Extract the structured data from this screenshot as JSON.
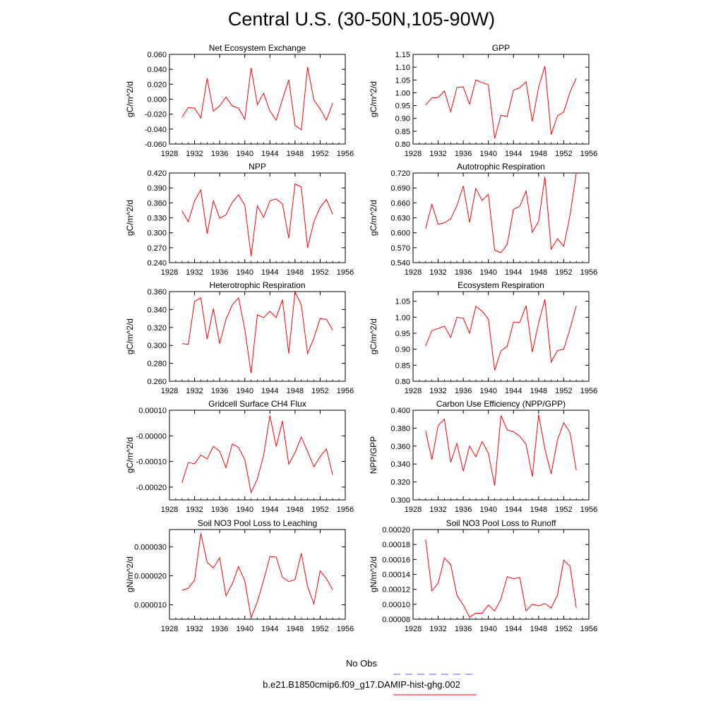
{
  "title": "Central U.S. (30-50N,105-90W)",
  "colors": {
    "model_line": "#ff0000",
    "obs_line": "#5555ff",
    "axis": "#000000"
  },
  "legend": [
    {
      "label": "No Obs",
      "color": "#5555ff",
      "style": "dashed"
    },
    {
      "label": "b.e21.B1850cmip6.f09_g17.DAMIP-hist-ghg.002",
      "color": "#ff0000",
      "style": "solid"
    }
  ],
  "chart_data": [
    {
      "type": "line",
      "title": "Net Ecosystem Exchange",
      "ylabel": "gC/m^2/d",
      "xlim": [
        1928,
        1956
      ],
      "xticks": [
        "1928",
        "1932",
        "1936",
        "1940",
        "1944",
        "1948",
        "1952",
        "1956"
      ],
      "ylim": [
        -0.06,
        0.06
      ],
      "yticks": [
        "-0.060",
        "-0.040",
        "-0.020",
        "0.000",
        "0.020",
        "0.040",
        "0.060"
      ],
      "x": [
        1930,
        1931,
        1932,
        1933,
        1934,
        1935,
        1936,
        1937,
        1938,
        1939,
        1940,
        1941,
        1942,
        1943,
        1944,
        1945,
        1946,
        1947,
        1948,
        1949,
        1950,
        1951,
        1952,
        1953,
        1954
      ],
      "series": [
        {
          "values": [
            -0.024,
            -0.011,
            -0.012,
            -0.025,
            0.028,
            -0.016,
            -0.009,
            0.003,
            -0.009,
            -0.012,
            -0.027,
            0.042,
            -0.007,
            0.008,
            -0.016,
            -0.028,
            0.0,
            0.026,
            -0.035,
            -0.041,
            0.043,
            -0.001,
            -0.013,
            -0.028,
            -0.005
          ]
        }
      ]
    },
    {
      "type": "line",
      "title": "GPP",
      "ylabel": "gC/m^2/d",
      "xlim": [
        1928,
        1956
      ],
      "xticks": [
        "1928",
        "1932",
        "1936",
        "1940",
        "1944",
        "1948",
        "1952",
        "1956"
      ],
      "ylim": [
        0.8,
        1.15
      ],
      "yticks": [
        "0.80",
        "0.85",
        "0.90",
        "0.95",
        "1.00",
        "1.05",
        "1.10",
        "1.15"
      ],
      "x": [
        1930,
        1931,
        1932,
        1933,
        1934,
        1935,
        1936,
        1937,
        1938,
        1939,
        1940,
        1941,
        1942,
        1943,
        1944,
        1945,
        1946,
        1947,
        1948,
        1949,
        1950,
        1951,
        1952,
        1953,
        1954
      ],
      "series": [
        {
          "values": [
            0.952,
            0.98,
            0.982,
            1.007,
            0.926,
            1.021,
            1.023,
            0.956,
            1.05,
            1.04,
            1.031,
            0.822,
            0.912,
            0.908,
            1.01,
            1.02,
            1.043,
            0.888,
            1.022,
            1.104,
            0.837,
            0.91,
            0.925,
            1.003,
            1.057
          ]
        }
      ]
    },
    {
      "type": "line",
      "title": "NPP",
      "ylabel": "gC/m^2/d",
      "xlim": [
        1928,
        1956
      ],
      "xticks": [
        "1928",
        "1932",
        "1936",
        "1940",
        "1944",
        "1948",
        "1952",
        "1956"
      ],
      "ylim": [
        0.24,
        0.42
      ],
      "yticks": [
        "0.240",
        "0.270",
        "0.300",
        "0.330",
        "0.360",
        "0.390",
        "0.420"
      ],
      "x": [
        1930,
        1931,
        1932,
        1933,
        1934,
        1935,
        1936,
        1937,
        1938,
        1939,
        1940,
        1941,
        1942,
        1943,
        1944,
        1945,
        1946,
        1947,
        1948,
        1949,
        1950,
        1951,
        1952,
        1953,
        1954
      ],
      "series": [
        {
          "values": [
            0.344,
            0.322,
            0.364,
            0.386,
            0.298,
            0.364,
            0.329,
            0.336,
            0.361,
            0.376,
            0.355,
            0.253,
            0.354,
            0.331,
            0.364,
            0.368,
            0.358,
            0.289,
            0.398,
            0.392,
            0.27,
            0.322,
            0.351,
            0.367,
            0.337
          ]
        }
      ]
    },
    {
      "type": "line",
      "title": "Autotrophic Respiration",
      "ylabel": "gC/m^2/d",
      "xlim": [
        1928,
        1956
      ],
      "xticks": [
        "1928",
        "1932",
        "1936",
        "1940",
        "1944",
        "1948",
        "1952",
        "1956"
      ],
      "ylim": [
        0.54,
        0.72
      ],
      "yticks": [
        "0.540",
        "0.570",
        "0.600",
        "0.630",
        "0.660",
        "0.690",
        "0.720"
      ],
      "x": [
        1930,
        1931,
        1932,
        1933,
        1934,
        1935,
        1936,
        1937,
        1938,
        1939,
        1940,
        1941,
        1942,
        1943,
        1944,
        1945,
        1946,
        1947,
        1948,
        1949,
        1950,
        1951,
        1952,
        1953,
        1954
      ],
      "series": [
        {
          "values": [
            0.608,
            0.657,
            0.617,
            0.62,
            0.628,
            0.655,
            0.694,
            0.621,
            0.689,
            0.665,
            0.677,
            0.565,
            0.56,
            0.577,
            0.647,
            0.653,
            0.684,
            0.601,
            0.623,
            0.712,
            0.567,
            0.588,
            0.573,
            0.635,
            0.72
          ]
        }
      ]
    },
    {
      "type": "line",
      "title": "Heterotrophic Respiration",
      "ylabel": "gC/m^2/d",
      "xlim": [
        1928,
        1956
      ],
      "xticks": [
        "1928",
        "1932",
        "1936",
        "1940",
        "1944",
        "1948",
        "1952",
        "1956"
      ],
      "ylim": [
        0.26,
        0.36
      ],
      "yticks": [
        "0.260",
        "0.280",
        "0.300",
        "0.320",
        "0.340",
        "0.360"
      ],
      "x": [
        1930,
        1931,
        1932,
        1933,
        1934,
        1935,
        1936,
        1937,
        1938,
        1939,
        1940,
        1941,
        1942,
        1943,
        1944,
        1945,
        1946,
        1947,
        1948,
        1949,
        1950,
        1951,
        1952,
        1953,
        1954
      ],
      "series": [
        {
          "values": [
            0.302,
            0.301,
            0.349,
            0.353,
            0.307,
            0.341,
            0.302,
            0.329,
            0.345,
            0.353,
            0.318,
            0.269,
            0.334,
            0.331,
            0.338,
            0.331,
            0.351,
            0.291,
            0.36,
            0.345,
            0.291,
            0.308,
            0.33,
            0.329,
            0.317
          ]
        }
      ]
    },
    {
      "type": "line",
      "title": "Ecosystem Respiration",
      "ylabel": "gC/m^2/d",
      "xlim": [
        1928,
        1956
      ],
      "xticks": [
        "1928",
        "1932",
        "1936",
        "1940",
        "1944",
        "1948",
        "1952",
        "1956"
      ],
      "ylim": [
        0.8,
        1.08
      ],
      "yticks": [
        "0.80",
        "0.85",
        "0.90",
        "0.95",
        "1.00",
        "1.05"
      ],
      "x": [
        1930,
        1931,
        1932,
        1933,
        1934,
        1935,
        1936,
        1937,
        1938,
        1939,
        1940,
        1941,
        1942,
        1943,
        1944,
        1945,
        1946,
        1947,
        1948,
        1949,
        1950,
        1951,
        1952,
        1953,
        1954
      ],
      "series": [
        {
          "values": [
            0.91,
            0.958,
            0.965,
            0.972,
            0.937,
            1.0,
            0.997,
            0.95,
            1.034,
            1.019,
            0.994,
            0.834,
            0.895,
            0.909,
            0.985,
            0.984,
            1.036,
            0.891,
            0.982,
            1.056,
            0.86,
            0.896,
            0.9,
            0.964,
            1.036
          ]
        }
      ]
    },
    {
      "type": "line",
      "title": "Gridcell Surface CH4 Flux",
      "ylabel": "gC/m^2/d",
      "xlim": [
        1928,
        1956
      ],
      "xticks": [
        "1928",
        "1932",
        "1936",
        "1940",
        "1944",
        "1948",
        "1952",
        "1956"
      ],
      "ylim": [
        -0.00025,
        0.0001
      ],
      "yticks": [
        "-0.00020",
        "-0.00010",
        "-0.00000",
        "0.00010"
      ],
      "x": [
        1930,
        1931,
        1932,
        1933,
        1934,
        1935,
        1936,
        1937,
        1938,
        1939,
        1940,
        1941,
        1942,
        1943,
        1944,
        1945,
        1946,
        1947,
        1948,
        1949,
        1950,
        1951,
        1952,
        1953,
        1954
      ],
      "series": [
        {
          "values": [
            -0.000183,
            -0.000104,
            -0.000109,
            -7.5e-05,
            -9e-05,
            -4.1e-05,
            -6e-05,
            -0.000124,
            -3.2e-05,
            -4.5e-05,
            -9.2e-05,
            -0.000221,
            -0.000168,
            -7.6e-05,
            7.9e-05,
            -4.2e-05,
            5.8e-05,
            -0.000111,
            -6.5e-05,
            -5e-06,
            -6.1e-05,
            -0.000121,
            -8.1e-05,
            -5.1e-05,
            -0.000153
          ]
        }
      ]
    },
    {
      "type": "line",
      "title": "Carbon Use Efficiency (NPP/GPP)",
      "ylabel": "NPP/GPP",
      "xlim": [
        1928,
        1956
      ],
      "xticks": [
        "1928",
        "1932",
        "1936",
        "1940",
        "1944",
        "1948",
        "1952",
        "1956"
      ],
      "ylim": [
        0.3,
        0.4
      ],
      "yticks": [
        "0.300",
        "0.320",
        "0.340",
        "0.360",
        "0.380",
        "0.400"
      ],
      "x": [
        1930,
        1931,
        1932,
        1933,
        1934,
        1935,
        1936,
        1937,
        1938,
        1939,
        1940,
        1941,
        1942,
        1943,
        1944,
        1945,
        1946,
        1947,
        1948,
        1949,
        1950,
        1951,
        1952,
        1953,
        1954
      ],
      "series": [
        {
          "values": [
            0.377,
            0.345,
            0.383,
            0.39,
            0.342,
            0.363,
            0.332,
            0.36,
            0.348,
            0.365,
            0.352,
            0.316,
            0.394,
            0.378,
            0.376,
            0.371,
            0.362,
            0.326,
            0.395,
            0.357,
            0.329,
            0.367,
            0.386,
            0.375,
            0.333
          ]
        }
      ]
    },
    {
      "type": "line",
      "title": "Soil NO3 Pool Loss to Leaching",
      "ylabel": "gN/m^2/d",
      "xlim": [
        1928,
        1956
      ],
      "xticks": [
        "1928",
        "1932",
        "1936",
        "1940",
        "1944",
        "1948",
        "1952",
        "1956"
      ],
      "ylim": [
        5e-06,
        3.6e-05
      ],
      "yticks": [
        "0.000010",
        "0.000020",
        "0.000030"
      ],
      "x": [
        1930,
        1931,
        1932,
        1933,
        1934,
        1935,
        1936,
        1937,
        1938,
        1939,
        1940,
        1941,
        1942,
        1943,
        1944,
        1945,
        1946,
        1947,
        1948,
        1949,
        1950,
        1951,
        1952,
        1953,
        1954
      ],
      "series": [
        {
          "values": [
            1.5e-05,
            1.57e-05,
            1.85e-05,
            3.47e-05,
            2.47e-05,
            2.27e-05,
            2.63e-05,
            1.31e-05,
            1.72e-05,
            2.32e-05,
            1.83e-05,
            5.5e-06,
            1.1e-05,
            1.85e-05,
            2.67e-05,
            2.65e-05,
            1.95e-05,
            1.8e-05,
            1.87e-05,
            2.78e-05,
            1.63e-05,
            1.03e-05,
            2.17e-05,
            1.9e-05,
            1.52e-05
          ]
        }
      ]
    },
    {
      "type": "line",
      "title": "Soil NO3 Pool Loss to Runoff",
      "ylabel": "gN/m^2/d",
      "xlim": [
        1928,
        1956
      ],
      "xticks": [
        "1928",
        "1932",
        "1936",
        "1940",
        "1944",
        "1948",
        "1952",
        "1956"
      ],
      "ylim": [
        8e-05,
        0.0002
      ],
      "yticks": [
        "0.00008",
        "0.00010",
        "0.00012",
        "0.00014",
        "0.00016",
        "0.00018",
        "0.00020"
      ],
      "x": [
        1930,
        1931,
        1932,
        1933,
        1934,
        1935,
        1936,
        1937,
        1938,
        1939,
        1940,
        1941,
        1942,
        1943,
        1944,
        1945,
        1946,
        1947,
        1948,
        1949,
        1950,
        1951,
        1952,
        1953,
        1954
      ],
      "series": [
        {
          "values": [
            0.000187,
            0.000118,
            0.000128,
            0.000162,
            0.000153,
            0.000112,
            9.9e-05,
            8.3e-05,
            8.8e-05,
            8.8e-05,
            9.9e-05,
            9.1e-05,
            0.000107,
            0.000137,
            0.000134,
            0.000136,
            9.1e-05,
            0.0001,
            9.8e-05,
            0.000101,
            9.5e-05,
            0.000112,
            0.000159,
            0.000151,
            9.5e-05
          ]
        }
      ]
    }
  ]
}
